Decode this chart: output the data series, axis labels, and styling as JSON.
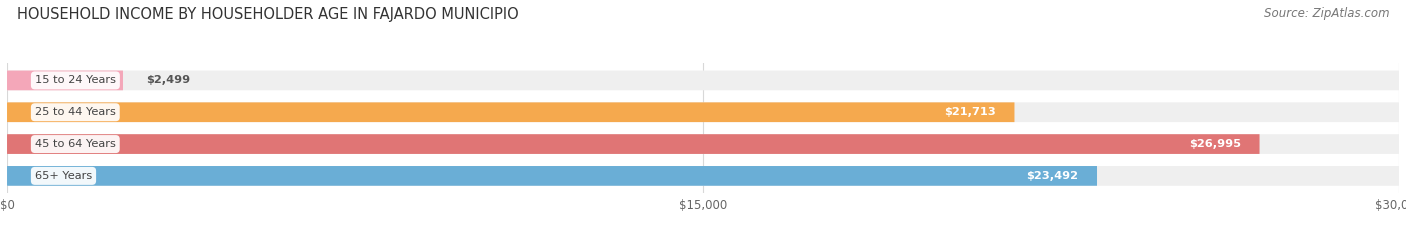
{
  "title": "HOUSEHOLD INCOME BY HOUSEHOLDER AGE IN FAJARDO MUNICIPIO",
  "source": "Source: ZipAtlas.com",
  "categories": [
    "15 to 24 Years",
    "25 to 44 Years",
    "45 to 64 Years",
    "65+ Years"
  ],
  "values": [
    2499,
    21713,
    26995,
    23492
  ],
  "bar_colors": [
    "#f4a7b9",
    "#f5a94e",
    "#e07575",
    "#6aaed6"
  ],
  "bar_bg_color": "#efefef",
  "xlim": [
    0,
    30000
  ],
  "xticks": [
    0,
    15000,
    30000
  ],
  "xticklabels": [
    "$0",
    "$15,000",
    "$30,000"
  ],
  "title_fontsize": 10.5,
  "source_fontsize": 8.5,
  "bar_height": 0.62,
  "bar_gap": 0.08,
  "background_color": "#ffffff",
  "grid_color": "#d8d8d8",
  "label_bg_color": "#ffffff",
  "value_label_threshold": 4000
}
